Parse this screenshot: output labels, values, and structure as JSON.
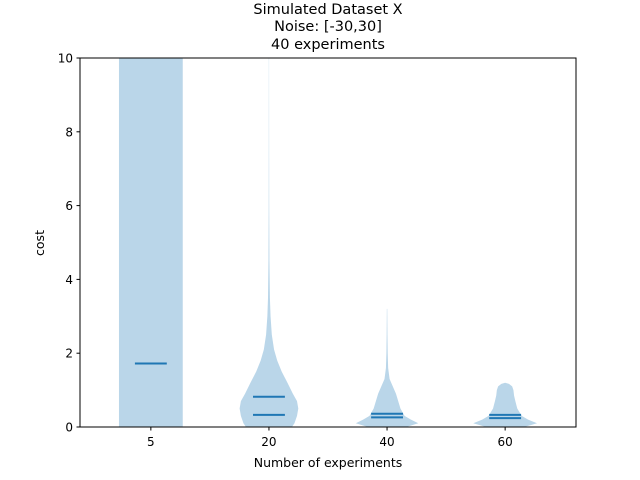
{
  "chart_data": {
    "type": "violin",
    "title_lines": [
      "Simulated Dataset X",
      "Noise: [-30,30]",
      "40 experiments"
    ],
    "xlabel": "Number of experiments",
    "ylabel": "cost",
    "ylim": [
      0,
      10
    ],
    "yticks": [
      0,
      2,
      4,
      6,
      8,
      10
    ],
    "categories": [
      "5",
      "20",
      "40",
      "60"
    ],
    "color": "#1f77b4",
    "fill_color": "#bad6e9",
    "violins": [
      {
        "category": "5",
        "lines": [
          1.72
        ],
        "profile": [
          [
            0,
            1.0
          ],
          [
            10,
            1.0
          ]
        ]
      },
      {
        "category": "20",
        "lines": [
          0.82,
          0.33
        ],
        "profile": [
          [
            0,
            0.72
          ],
          [
            0.1,
            0.8
          ],
          [
            0.3,
            0.88
          ],
          [
            0.5,
            0.92
          ],
          [
            0.7,
            0.88
          ],
          [
            0.9,
            0.75
          ],
          [
            1.2,
            0.58
          ],
          [
            1.5,
            0.4
          ],
          [
            1.8,
            0.26
          ],
          [
            2.1,
            0.16
          ],
          [
            2.5,
            0.09
          ],
          [
            3.0,
            0.05
          ],
          [
            3.5,
            0.03
          ],
          [
            4.5,
            0.015
          ],
          [
            6,
            0.008
          ],
          [
            8,
            0.005
          ],
          [
            10,
            0.004
          ]
        ]
      },
      {
        "category": "40",
        "lines": [
          0.36,
          0.26
        ],
        "profile": [
          [
            0,
            0.6
          ],
          [
            0.1,
            0.98
          ],
          [
            0.2,
            0.75
          ],
          [
            0.3,
            0.55
          ],
          [
            0.5,
            0.42
          ],
          [
            0.7,
            0.35
          ],
          [
            0.9,
            0.28
          ],
          [
            1.1,
            0.18
          ],
          [
            1.3,
            0.08
          ],
          [
            1.6,
            0.035
          ],
          [
            2.0,
            0.02
          ],
          [
            2.5,
            0.012
          ],
          [
            3.2,
            0.006
          ]
        ]
      },
      {
        "category": "60",
        "lines": [
          0.33,
          0.24
        ],
        "profile": [
          [
            0,
            0.6
          ],
          [
            0.1,
            1.0
          ],
          [
            0.2,
            0.72
          ],
          [
            0.3,
            0.52
          ],
          [
            0.5,
            0.38
          ],
          [
            0.7,
            0.32
          ],
          [
            0.85,
            0.28
          ],
          [
            1.0,
            0.26
          ],
          [
            1.1,
            0.22
          ],
          [
            1.17,
            0.12
          ],
          [
            1.2,
            0.0
          ]
        ]
      }
    ]
  }
}
